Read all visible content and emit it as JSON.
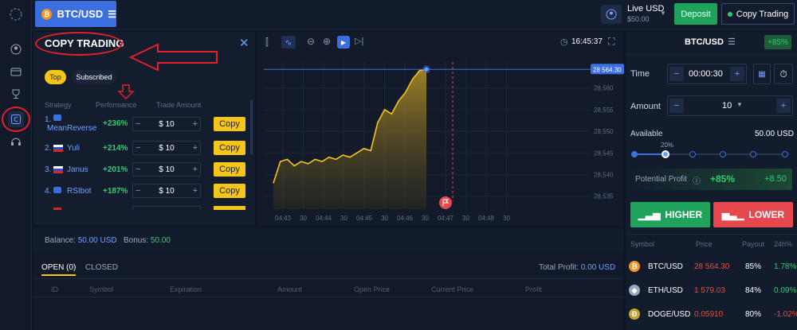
{
  "topbar": {
    "pair": "BTC/USD",
    "account_type": "Live USD",
    "balance": "$50.00",
    "deposit": "Deposit",
    "copy_trading": "Copy Trading"
  },
  "copy_trading": {
    "title": "COPY TRADING",
    "tabs": [
      "Top",
      "Subscribed"
    ],
    "headers": [
      "Strategy",
      "Performance",
      "Trade Amount"
    ],
    "rows": [
      {
        "rank": "1.",
        "name": "MeanReverse",
        "perf": "+236%",
        "amount": "$ 10",
        "action": "Copy"
      },
      {
        "rank": "2.",
        "name": "Yuli",
        "perf": "+214%",
        "amount": "$ 10",
        "action": "Copy"
      },
      {
        "rank": "3.",
        "name": "Janus",
        "perf": "+201%",
        "amount": "$ 10",
        "action": "Copy"
      },
      {
        "rank": "4.",
        "name": "RSIbot",
        "perf": "+187%",
        "amount": "$ 10",
        "action": "Copy"
      }
    ]
  },
  "chart": {
    "time": "16:45:37",
    "current_price": "28 564.30",
    "y_ticks": [
      "28,560",
      "28,555",
      "28,550",
      "28,545",
      "28,540",
      "28,535"
    ],
    "x_ticks": [
      "04:43",
      "30",
      "04:44",
      "30",
      "04:45",
      "30",
      "04:46",
      "30",
      "04:47",
      "30",
      "04:48",
      "30"
    ]
  },
  "chart_data": {
    "type": "area",
    "series": [
      {
        "values": [
          28538,
          28543,
          28543.5,
          28542,
          28543,
          28542.5,
          28543.5,
          28543,
          28544,
          28543.5,
          28544.5,
          28544,
          28545,
          28546,
          28545.5,
          28552,
          28555,
          28554,
          28557,
          28559,
          28562,
          28564,
          28564.3
        ]
      }
    ],
    "ylim": [
      28532,
      28566
    ]
  },
  "trade": {
    "pair": "BTC/USD",
    "payout_badge": "+85%",
    "time_label": "Time",
    "time_value": "00:00:30",
    "amount_label": "Amount",
    "amount_value": "10",
    "available_label": "Available",
    "available_value": "50.00 USD",
    "slider_label": "20%",
    "slider_value": 0.2,
    "profit_label": "Potential Profit",
    "profit_percent": "+85%",
    "profit_value": "+8.50",
    "higher": "HIGHER",
    "lower": "LOWER"
  },
  "symbols": {
    "headers": [
      "Symbol",
      "Price",
      "Payout",
      "24h%"
    ],
    "rows": [
      {
        "symbol": "BTC/USD",
        "price": "28 564.30",
        "payout": "85%",
        "change": "1.78%",
        "change_color": "#2ecc71"
      },
      {
        "symbol": "ETH/USD",
        "price": "1 579.03",
        "payout": "84%",
        "change": "0.09%",
        "change_color": "#2ecc71"
      },
      {
        "symbol": "DOGE/USD",
        "price": "0.05910",
        "payout": "80%",
        "change": "-1.02%",
        "change_color": "#e74c3c"
      }
    ]
  },
  "bottom": {
    "balance_label": "Balance:",
    "balance_value": "50.00 USD",
    "bonus_label": "Bonus:",
    "bonus_value": "50.00",
    "tab_open": "OPEN (0)",
    "tab_closed": "CLOSED",
    "total_profit_label": "Total Profit:",
    "total_profit_value": "0.00 USD",
    "columns": [
      "ID",
      "Symbol",
      "Expiration",
      "Amount",
      "Open Price",
      "Current Price",
      "Profit"
    ]
  },
  "colors": {
    "accent": "#3b6fe0",
    "green": "#1fa35a",
    "red": "#e5484d",
    "yellow": "#f5c518"
  }
}
